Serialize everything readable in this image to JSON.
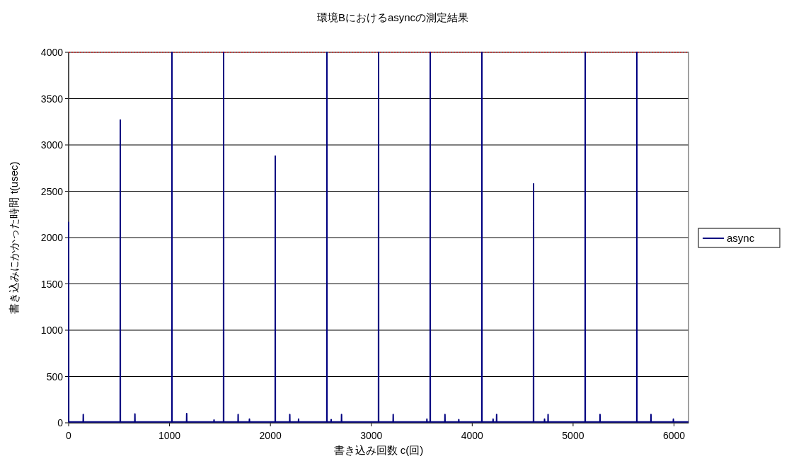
{
  "chart_data": {
    "type": "line",
    "title": "環境Bにおけるasyncの測定結果",
    "xlabel": "書き込み回数 c(回)",
    "ylabel": "書き込みにかかった時間 t(usec)",
    "xlim": [
      0,
      6144
    ],
    "xticks": [
      0,
      1000,
      2000,
      3000,
      4000,
      5000,
      6000
    ],
    "ylim": [
      0,
      4000
    ],
    "yticks": [
      0,
      500,
      1000,
      1500,
      2000,
      2500,
      3000,
      3500,
      4000
    ],
    "grid": "y",
    "legend": "right",
    "ref_lines": [
      {
        "axis": "y",
        "value": 4000,
        "color": "#ff0000",
        "line_style": "dotted"
      }
    ],
    "series": [
      {
        "name": "async",
        "color": "#000080",
        "x": [
          0,
          1,
          144,
          145,
          146,
          511,
          512,
          513,
          656,
          657,
          658,
          1023,
          1024,
          1025,
          1169,
          1170,
          1171,
          1440,
          1441,
          1442,
          1535,
          1536,
          1537,
          1679,
          1680,
          1681,
          1791,
          1792,
          1793,
          2047,
          2048,
          2049,
          2191,
          2192,
          2193,
          2278,
          2279,
          2280,
          2559,
          2560,
          2561,
          2601,
          2602,
          2603,
          2704,
          2705,
          2706,
          3071,
          3072,
          3073,
          3216,
          3217,
          3218,
          3550,
          3551,
          3552,
          3583,
          3584,
          3585,
          3729,
          3730,
          3731,
          3866,
          3867,
          3868,
          4095,
          4096,
          4097,
          4206,
          4207,
          4208,
          4241,
          4242,
          4243,
          4607,
          4608,
          4609,
          4716,
          4717,
          4718,
          4751,
          4752,
          4753,
          5119,
          5120,
          5121,
          5266,
          5267,
          5268,
          5631,
          5632,
          5633,
          5771,
          5772,
          5773,
          5993,
          5994,
          5995,
          6144
        ],
        "values": [
          2170,
          10,
          10,
          90,
          10,
          10,
          3270,
          10,
          10,
          95,
          10,
          10,
          4000,
          10,
          10,
          100,
          10,
          10,
          30,
          10,
          10,
          4000,
          10,
          10,
          90,
          10,
          10,
          40,
          10,
          10,
          2880,
          10,
          10,
          90,
          10,
          10,
          40,
          10,
          10,
          4000,
          10,
          10,
          35,
          10,
          10,
          90,
          10,
          10,
          4000,
          10,
          10,
          90,
          10,
          10,
          40,
          10,
          10,
          4000,
          10,
          10,
          90,
          10,
          10,
          35,
          10,
          10,
          4000,
          10,
          10,
          40,
          10,
          10,
          90,
          10,
          10,
          2580,
          10,
          10,
          40,
          10,
          10,
          90,
          10,
          10,
          4000,
          10,
          10,
          90,
          10,
          10,
          4000,
          10,
          10,
          90,
          10,
          10,
          40,
          10,
          10
        ]
      }
    ]
  }
}
